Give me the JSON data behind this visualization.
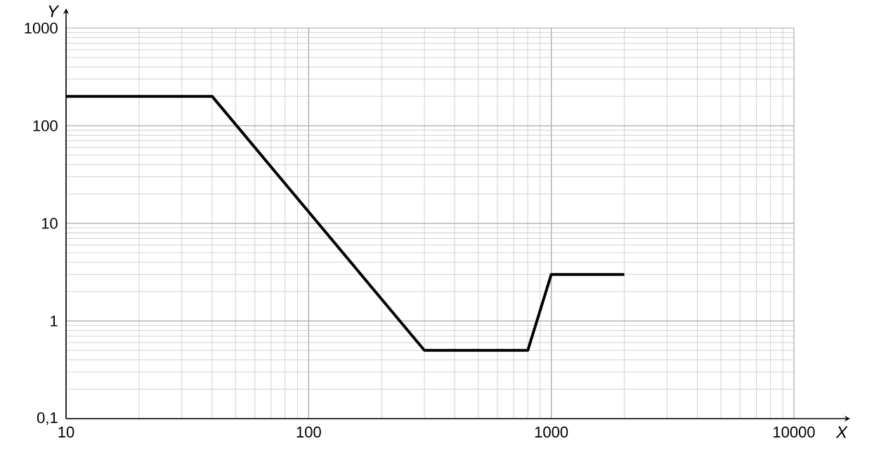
{
  "chart_data": {
    "type": "line",
    "xlabel": "X",
    "ylabel": "Y",
    "log": "xy",
    "xlim": [
      10,
      10000
    ],
    "ylim": [
      0.1,
      1000
    ],
    "xticks": [
      10,
      100,
      1000,
      10000
    ],
    "yticks": [
      {
        "value": 0.1,
        "label": "0,1"
      },
      1,
      10,
      100,
      1000
    ],
    "grid": true,
    "marker": "none",
    "line_style": "solid",
    "series": [
      {
        "color": "#000000",
        "x": [
          10,
          40,
          300,
          800,
          1000,
          2000
        ],
        "values": [
          200,
          200,
          0.5,
          0.5,
          3,
          3
        ]
      }
    ]
  }
}
